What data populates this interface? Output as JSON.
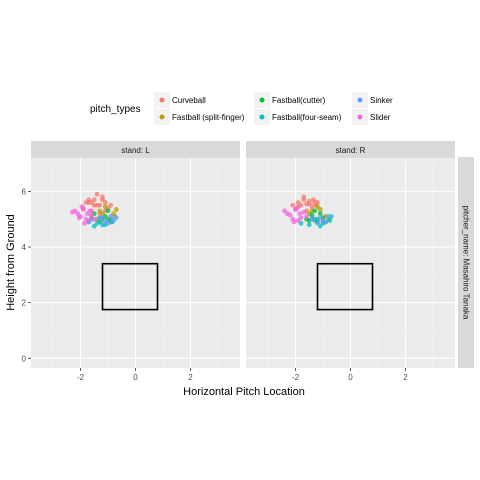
{
  "chart_data": {
    "type": "scatter",
    "title": "",
    "xlabel": "Horizontal Pitch Location",
    "ylabel": "Height from Ground",
    "xlim": [
      -3.8,
      3.8
    ],
    "ylim": [
      -0.35,
      7.2
    ],
    "x_ticks": [
      -2,
      0,
      2
    ],
    "y_ticks": [
      0,
      2,
      4,
      6
    ],
    "facet_cols": [
      "stand: L",
      "stand: R"
    ],
    "facet_row": "pitcher_name: Masahiro Tanaka",
    "legend": {
      "title": "pitch_types",
      "position": "top",
      "entries": [
        {
          "name": "Curveball",
          "color": "#F8766D"
        },
        {
          "name": "Fastball (split-finger)",
          "color": "#B79F00"
        },
        {
          "name": "Fastball(cutter)",
          "color": "#00BA38"
        },
        {
          "name": "Fastball(four-seam)",
          "color": "#00BFC4"
        },
        {
          "name": "Sinker",
          "color": "#619CFF"
        },
        {
          "name": "Slider",
          "color": "#F564E3"
        }
      ]
    },
    "strike_zone": {
      "x": [
        -1.2,
        0.8
      ],
      "y": [
        1.75,
        3.4
      ]
    },
    "series": [
      {
        "panel": "stand: L",
        "name": "Curveball",
        "color": "#F8766D",
        "x": [
          -1.9,
          -1.7,
          -1.5,
          -1.3,
          -1.1,
          -1.4,
          -1.6,
          -1.2,
          -1.0,
          -1.8,
          -1.5,
          -1.3,
          -1.7,
          -1.1,
          -1.4,
          -1.6,
          -1.2,
          -0.9
        ],
        "y": [
          5.4,
          5.6,
          5.7,
          5.5,
          5.6,
          5.9,
          5.3,
          5.8,
          5.4,
          5.6,
          5.5,
          5.2,
          5.7,
          5.3,
          5.5,
          5.6,
          5.7,
          5.5
        ]
      },
      {
        "panel": "stand: L",
        "name": "Fastball (split-finger)",
        "color": "#B79F00",
        "x": [
          -1.6,
          -1.3,
          -1.0,
          -0.8,
          -0.7,
          -1.1,
          -1.4,
          -0.9,
          -1.2,
          -0.75
        ],
        "y": [
          5.1,
          5.3,
          5.0,
          5.2,
          5.35,
          5.45,
          5.0,
          4.9,
          5.2,
          5.1
        ]
      },
      {
        "panel": "stand: L",
        "name": "Fastball(cutter)",
        "color": "#00BA38",
        "x": [
          -1.5,
          -1.2,
          -1.0,
          -1.3,
          -1.1,
          -0.9
        ],
        "y": [
          5.2,
          5.0,
          5.3,
          4.9,
          5.1,
          5.0
        ]
      },
      {
        "panel": "stand: L",
        "name": "Fastball(four-seam)",
        "color": "#00BFC4",
        "x": [
          -1.7,
          -1.4,
          -1.2,
          -1.0,
          -1.3,
          -1.5,
          -0.85,
          -1.1,
          -1.6
        ],
        "y": [
          4.9,
          4.85,
          4.8,
          4.95,
          5.05,
          4.75,
          4.9,
          4.8,
          5.0
        ]
      },
      {
        "panel": "stand: L",
        "name": "Sinker",
        "color": "#619CFF",
        "x": [
          -1.3,
          -1.1,
          -0.9,
          -0.8,
          -1.0,
          -1.2,
          -0.7
        ],
        "y": [
          5.0,
          4.9,
          5.1,
          4.95,
          4.85,
          5.05,
          5.05
        ]
      },
      {
        "panel": "stand: L",
        "name": "Slider",
        "color": "#F564E3",
        "x": [
          -2.2,
          -2.0,
          -1.8,
          -1.9,
          -2.1,
          -1.7,
          -1.6,
          -2.3,
          -1.85,
          -1.95,
          -1.65,
          -1.5,
          -2.05,
          -1.75
        ],
        "y": [
          5.3,
          5.1,
          5.0,
          5.35,
          5.2,
          4.95,
          5.15,
          5.25,
          4.85,
          5.45,
          5.3,
          5.0,
          5.05,
          5.2
        ]
      },
      {
        "panel": "stand: R",
        "name": "Curveball",
        "color": "#F8766D",
        "x": [
          -2.1,
          -1.9,
          -1.7,
          -1.5,
          -1.3,
          -1.6,
          -1.8,
          -1.4,
          -1.2,
          -2.0,
          -1.7,
          -1.5,
          -1.9,
          -1.35,
          -1.6,
          -1.25
        ],
        "y": [
          5.5,
          5.6,
          5.7,
          5.55,
          5.6,
          5.3,
          5.5,
          5.45,
          5.6,
          5.35,
          5.8,
          5.65,
          5.45,
          5.7,
          5.55,
          5.5
        ]
      },
      {
        "panel": "stand: R",
        "name": "Fastball (split-finger)",
        "color": "#B79F00",
        "x": [
          -1.5,
          -1.3,
          -1.1,
          -0.9,
          -1.2,
          -1.0,
          -1.4,
          -0.8
        ],
        "y": [
          5.2,
          5.0,
          5.35,
          5.1,
          5.45,
          4.9,
          5.3,
          5.0
        ]
      },
      {
        "panel": "stand: R",
        "name": "Fastball(cutter)",
        "color": "#00BA38",
        "x": [
          -1.6,
          -1.4,
          -1.2,
          -1.0,
          -1.3,
          -1.5,
          -1.1
        ],
        "y": [
          5.0,
          5.15,
          4.9,
          5.05,
          5.3,
          4.95,
          5.2
        ]
      },
      {
        "panel": "stand: R",
        "name": "Fastball(four-seam)",
        "color": "#00BFC4",
        "x": [
          -1.8,
          -1.5,
          -1.3,
          -1.1,
          -0.9,
          -1.4,
          -1.2,
          -0.7,
          -1.0,
          -0.75
        ],
        "y": [
          4.85,
          4.8,
          4.95,
          4.75,
          4.9,
          5.05,
          5.0,
          5.1,
          4.85,
          4.95
        ]
      },
      {
        "panel": "stand: R",
        "name": "Sinker",
        "color": "#619CFF",
        "x": [
          -1.4,
          -1.2,
          -1.0,
          -0.8,
          -1.1,
          -0.9
        ],
        "y": [
          5.0,
          4.85,
          4.95,
          5.1,
          5.05,
          4.9
        ]
      },
      {
        "panel": "stand: R",
        "name": "Slider",
        "color": "#F564E3",
        "x": [
          -2.3,
          -2.1,
          -1.9,
          -2.0,
          -2.2,
          -1.8,
          -1.7,
          -2.4,
          -1.95,
          -2.05,
          -1.6,
          -1.85
        ],
        "y": [
          5.2,
          5.0,
          4.95,
          5.35,
          5.15,
          5.05,
          5.25,
          5.3,
          5.4,
          4.9,
          5.1,
          5.2
        ]
      }
    ]
  }
}
